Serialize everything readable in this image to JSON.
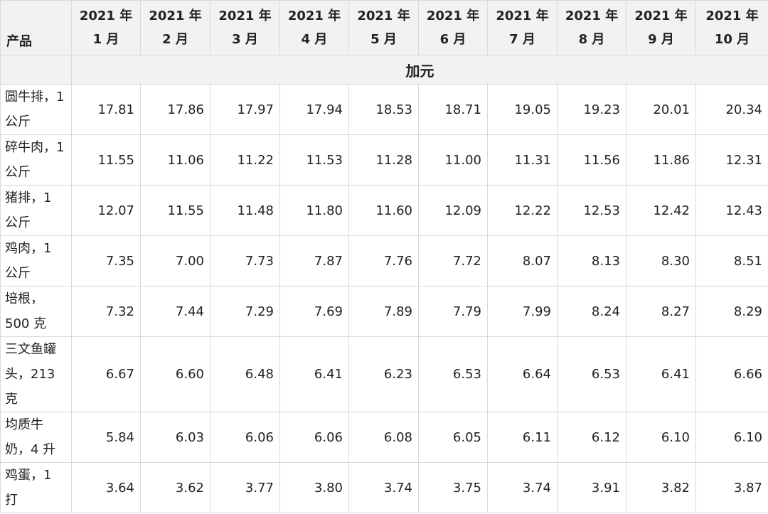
{
  "header": {
    "product_label": "产品",
    "months": [
      "2021 年 1 月",
      "2021 年 2 月",
      "2021 年 3 月",
      "2021 年 4 月",
      "2021 年 5 月",
      "2021 年 6 月",
      "2021 年 7 月",
      "2021 年 8 月",
      "2021 年 9 月",
      "2021 年 10 月"
    ]
  },
  "currency": "加元",
  "rows": [
    {
      "name": "圆牛排，1公斤",
      "values": [
        "17.81",
        "17.86",
        "17.97",
        "17.94",
        "18.53",
        "18.71",
        "19.05",
        "19.23",
        "20.01",
        "20.34"
      ]
    },
    {
      "name": "碎牛肉，1公斤",
      "values": [
        "11.55",
        "11.06",
        "11.22",
        "11.53",
        "11.28",
        "11.00",
        "11.31",
        "11.56",
        "11.86",
        "12.31"
      ]
    },
    {
      "name": "猪排，1 公斤",
      "values": [
        "12.07",
        "11.55",
        "11.48",
        "11.80",
        "11.60",
        "12.09",
        "12.22",
        "12.53",
        "12.42",
        "12.43"
      ]
    },
    {
      "name": "鸡肉，1 公斤",
      "values": [
        "7.35",
        "7.00",
        "7.73",
        "7.87",
        "7.76",
        "7.72",
        "8.07",
        "8.13",
        "8.30",
        "8.51"
      ]
    },
    {
      "name": "培根，500 克",
      "values": [
        "7.32",
        "7.44",
        "7.29",
        "7.69",
        "7.89",
        "7.79",
        "7.99",
        "8.24",
        "8.27",
        "8.29"
      ]
    },
    {
      "name": "三文鱼罐头，213 克",
      "values": [
        "6.67",
        "6.60",
        "6.48",
        "6.41",
        "6.23",
        "6.53",
        "6.64",
        "6.53",
        "6.41",
        "6.66"
      ]
    },
    {
      "name": "均质牛奶，4 升",
      "values": [
        "5.84",
        "6.03",
        "6.06",
        "6.06",
        "6.08",
        "6.05",
        "6.11",
        "6.12",
        "6.10",
        "6.10"
      ]
    },
    {
      "name": "鸡蛋，1 打",
      "values": [
        "3.64",
        "3.62",
        "3.77",
        "3.80",
        "3.74",
        "3.75",
        "3.74",
        "3.91",
        "3.82",
        "3.87"
      ]
    }
  ]
}
